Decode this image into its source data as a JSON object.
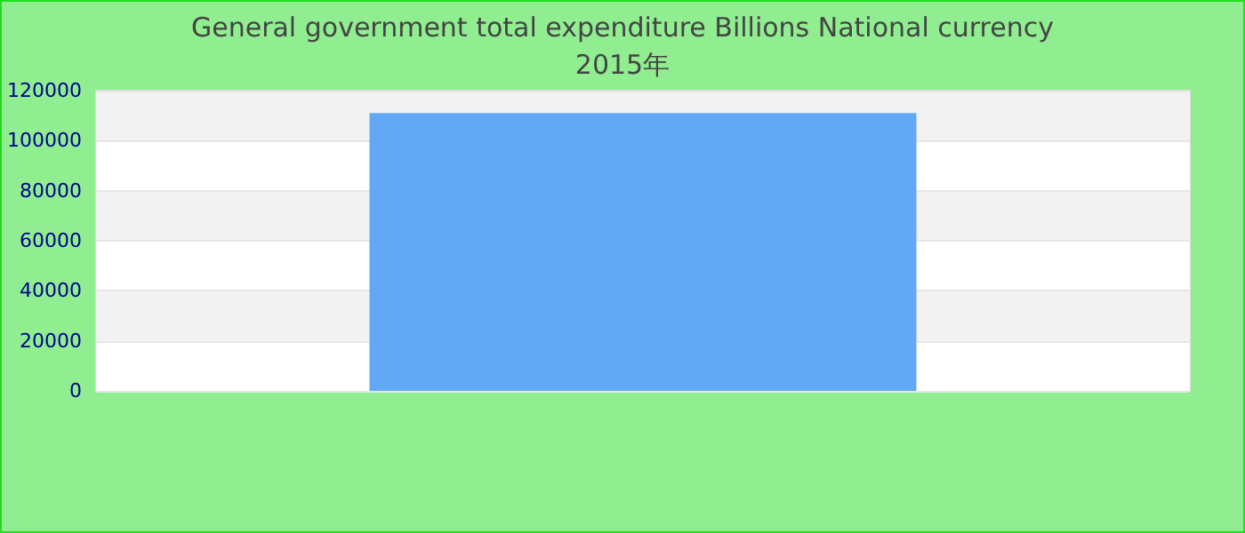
{
  "chart_data": {
    "type": "bar",
    "title": "General government total expenditure Billions National currency",
    "subtitle": "2015年",
    "categories": [
      null
    ],
    "series": [
      {
        "color": "#61a8f5",
        "values": [
          111000
        ]
      }
    ],
    "ylim": [
      0,
      120000
    ],
    "yticks": [
      0,
      20000,
      40000,
      60000,
      80000,
      100000,
      120000
    ],
    "grid": true
  }
}
